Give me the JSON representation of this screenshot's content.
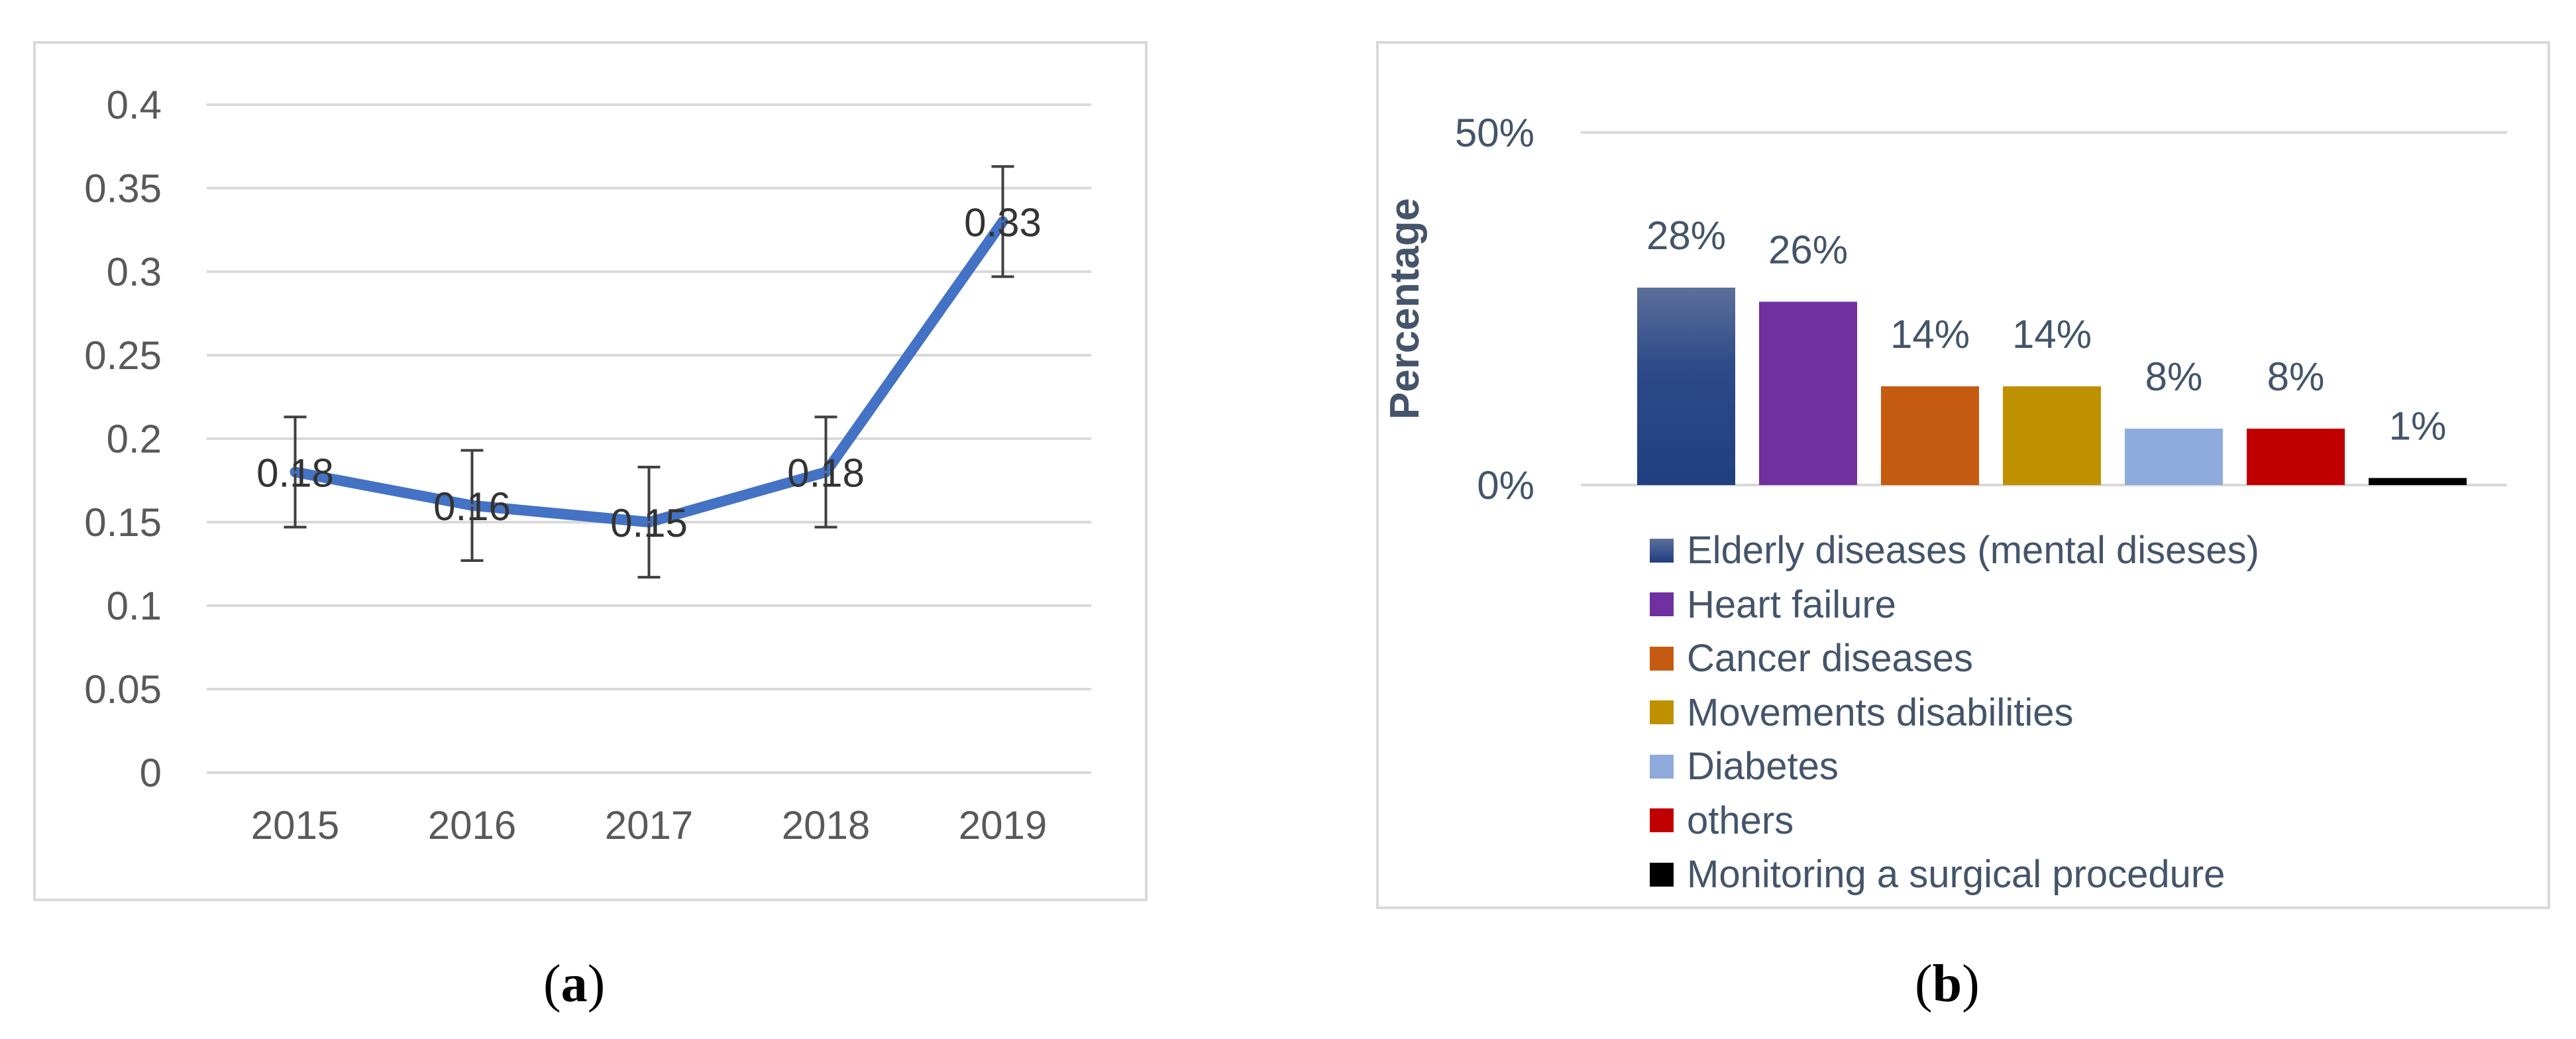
{
  "chart_data": [
    {
      "type": "line",
      "panel": "a",
      "title": "",
      "xlabel": "",
      "ylabel": "",
      "x": [
        "2015",
        "2016",
        "2017",
        "2018",
        "2019"
      ],
      "values": [
        0.18,
        0.16,
        0.15,
        0.18,
        0.33
      ],
      "data_labels": [
        "0.18",
        "0.16",
        "0.15",
        "0.18",
        "0.33"
      ],
      "error": [
        0.033,
        0.033,
        0.033,
        0.033,
        0.033
      ],
      "ylim": [
        0,
        0.4
      ],
      "yticks": [
        0,
        0.05,
        0.1,
        0.15,
        0.2,
        0.25,
        0.3,
        0.35,
        0.4
      ],
      "ytick_labels": [
        "0",
        "0.05",
        "0.1",
        "0.15",
        "0.2",
        "0.25",
        "0.3",
        "0.35",
        "0.4"
      ],
      "grid": true,
      "line_color": "#4472c4"
    },
    {
      "type": "bar",
      "panel": "b",
      "title": "",
      "xlabel": "",
      "ylabel": "Percentage",
      "categories": [
        "Elderly diseases (mental diseses)",
        "Heart failure",
        "Cancer diseases",
        "Movements disabilities",
        "Diabetes",
        "others",
        "Monitoring a surgical procedure"
      ],
      "values": [
        28,
        26,
        14,
        14,
        8,
        8,
        1
      ],
      "data_labels": [
        "28%",
        "26%",
        "14%",
        "14%",
        "8%",
        "8%",
        "1%"
      ],
      "colors": [
        "#203f80",
        "#7030a0",
        "#c55a11",
        "#bf9000",
        "#8faadc",
        "#c00000",
        "#000000"
      ],
      "ylim": [
        0,
        50
      ],
      "yticks": [
        0,
        50
      ],
      "ytick_labels": [
        "0%",
        "50%"
      ],
      "legend_position": "bottom",
      "grid": true
    }
  ],
  "captions": {
    "a": "a",
    "b": "b"
  }
}
